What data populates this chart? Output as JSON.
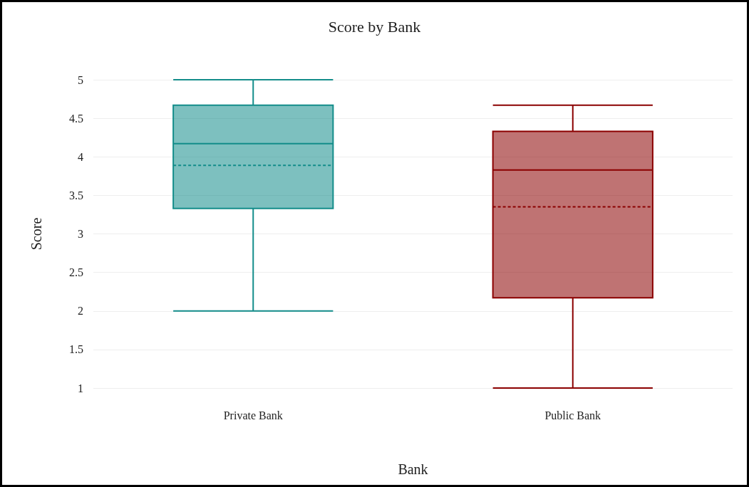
{
  "chart_data": {
    "type": "box",
    "title": "Score by Bank",
    "xlabel": "Bank",
    "ylabel": "Score",
    "categories": [
      "Private Bank",
      "Public Bank"
    ],
    "colors": [
      "#138d8a",
      "#8b0000"
    ],
    "boxes": [
      {
        "low": 2,
        "q1": 3.33,
        "median": 4.17,
        "q3": 4.67,
        "high": 5,
        "mean": 3.89
      },
      {
        "low": 1,
        "q1": 2.17,
        "median": 3.83,
        "q3": 4.33,
        "high": 4.67,
        "mean": 3.35
      }
    ],
    "ylim": [
      1,
      5
    ],
    "yticks": [
      1,
      1.5,
      2,
      2.5,
      3,
      3.5,
      4,
      4.5,
      5
    ],
    "grid": "y"
  }
}
